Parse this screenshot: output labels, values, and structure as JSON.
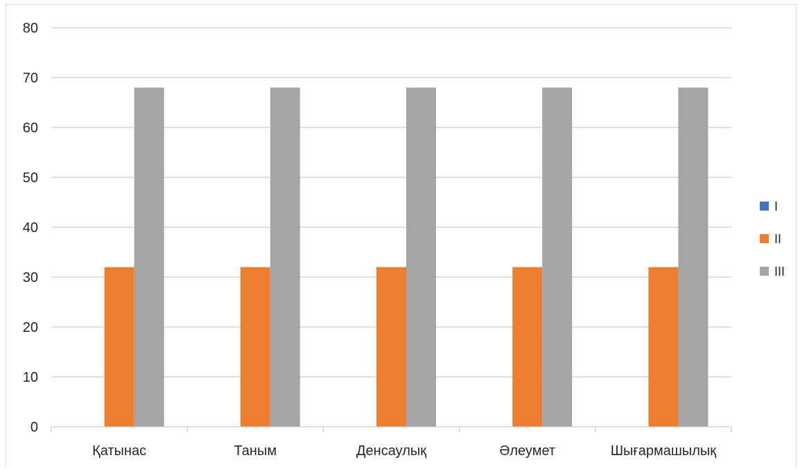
{
  "chart_data": {
    "type": "bar",
    "title": "",
    "xlabel": "",
    "ylabel": "",
    "categories": [
      "Қатынас",
      "Таным",
      "Денсаулық",
      "Әлеумет",
      "Шығармашылық"
    ],
    "series": [
      {
        "name": "I",
        "color": "#4472c4",
        "values": [
          0,
          0,
          0,
          0,
          0
        ]
      },
      {
        "name": "II",
        "color": "#ed7d31",
        "values": [
          32,
          32,
          32,
          32,
          32
        ]
      },
      {
        "name": "III",
        "color": "#a5a5a5",
        "values": [
          68,
          68,
          68,
          68,
          68
        ]
      }
    ],
    "ylim": [
      0,
      80
    ],
    "yticks": [
      "0",
      "10",
      "20",
      "30",
      "40",
      "50",
      "60",
      "70",
      "80"
    ],
    "grid": true,
    "legend": "right",
    "colors": {
      "gridline": "#bfbfbf",
      "axis": "#bfbfbf",
      "text": "#262626"
    }
  }
}
